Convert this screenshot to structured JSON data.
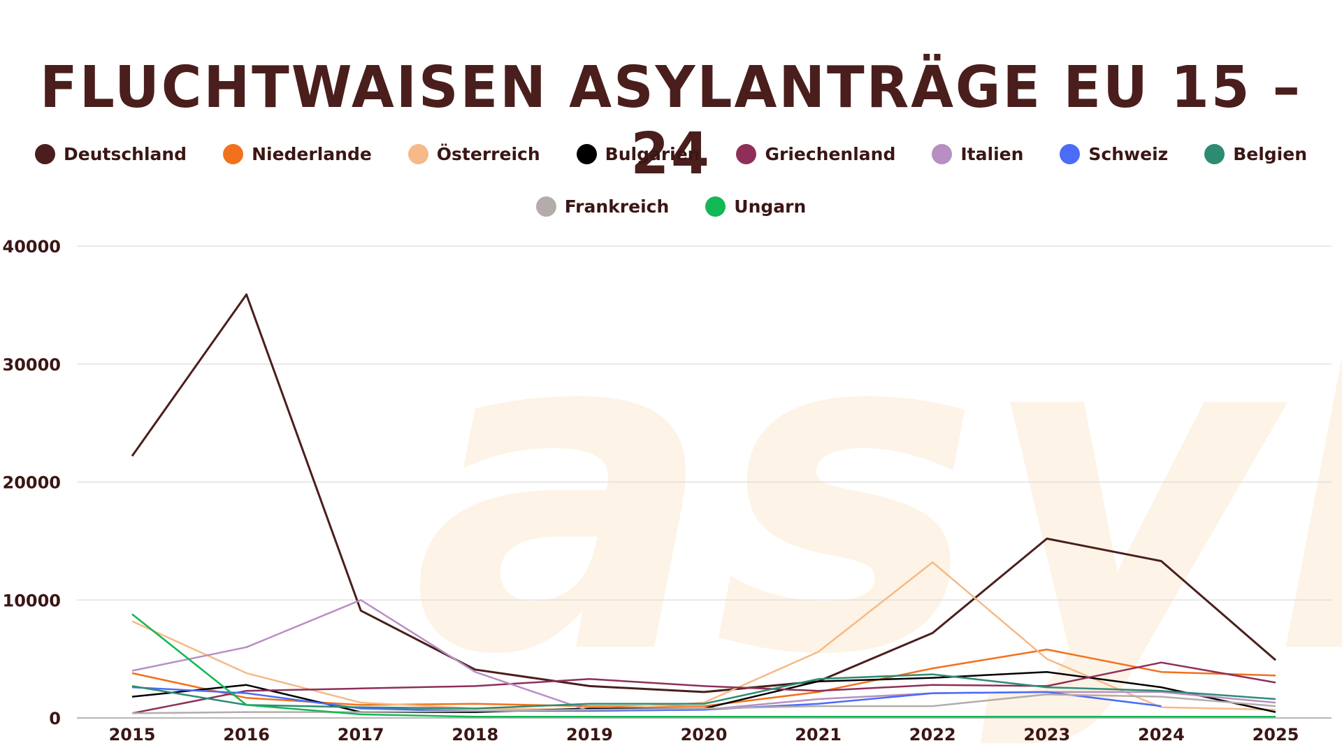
{
  "chart_data": {
    "type": "line",
    "title": "FLUCHTWAISEN ASYLANTRÄGE EU 15 – 24",
    "watermark": "asyl",
    "x": [
      "2015",
      "2016",
      "2017",
      "2018",
      "2019",
      "2020",
      "2021",
      "2022",
      "2023",
      "2024",
      "2025"
    ],
    "ylim": [
      0,
      40000
    ],
    "yticks": [
      0,
      10000,
      20000,
      30000,
      40000
    ],
    "ytick_labels": [
      "0",
      "10000",
      "20000",
      "30000",
      "40000"
    ],
    "grid": true,
    "legend_position": "top-center",
    "series": [
      {
        "name": "Deutschland",
        "color": "#4a1e1c",
        "values": [
          22200,
          35900,
          9100,
          4100,
          2700,
          2200,
          3100,
          7200,
          15200,
          13300,
          4900
        ]
      },
      {
        "name": "Niederlande",
        "color": "#f2711c",
        "values": [
          3800,
          1700,
          1100,
          1200,
          1000,
          1000,
          2200,
          4200,
          5800,
          3900,
          3600
        ]
      },
      {
        "name": "Österreich",
        "color": "#f6b987",
        "values": [
          8200,
          3800,
          1300,
          800,
          700,
          1300,
          5600,
          13200,
          5000,
          900,
          700
        ]
      },
      {
        "name": "Bulgarien",
        "color": "#000000",
        "values": [
          1800,
          2800,
          500,
          500,
          800,
          800,
          3100,
          3400,
          3900,
          2600,
          500
        ]
      },
      {
        "name": "Griechenland",
        "color": "#8e2f5a",
        "values": [
          400,
          2300,
          2500,
          2700,
          3300,
          2700,
          2300,
          2800,
          2700,
          4700,
          3000
        ]
      },
      {
        "name": "Italien",
        "color": "#b78fc2",
        "values": [
          4000,
          6000,
          10000,
          3900,
          600,
          700,
          1600,
          2100,
          2200,
          2200,
          1300
        ]
      },
      {
        "name": "Schweiz",
        "color": "#4a6cf7",
        "values": [
          2600,
          2100,
          800,
          600,
          600,
          700,
          1200,
          2100,
          2200,
          1000,
          null
        ]
      },
      {
        "name": "Belgien",
        "color": "#2e8b73",
        "values": [
          2700,
          1100,
          900,
          800,
          1200,
          1200,
          3300,
          3700,
          2600,
          2300,
          1600
        ]
      },
      {
        "name": "Frankreich",
        "color": "#b3acab",
        "values": [
          400,
          500,
          500,
          600,
          700,
          800,
          1000,
          1000,
          2000,
          1800,
          1000
        ]
      },
      {
        "name": "Ungarn",
        "color": "#12b854",
        "values": [
          8800,
          1100,
          300,
          100,
          100,
          100,
          100,
          100,
          100,
          100,
          100
        ]
      }
    ]
  }
}
